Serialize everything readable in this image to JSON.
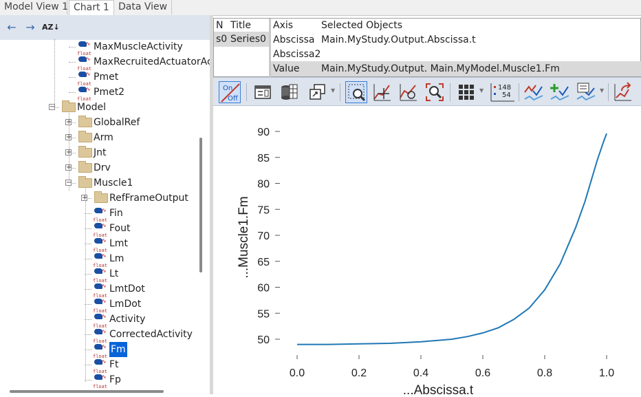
{
  "tabs": [
    "Model View 1",
    "Chart 1",
    "Data View"
  ],
  "tree_toolbar": {
    "back_icon": "arrow-left-icon",
    "forward_icon": "arrow-right-icon",
    "sort_icon": "sort-az-icon",
    "sort_label": "AZ"
  },
  "tree": {
    "items": [
      {
        "label": "MaxMuscleActivity",
        "kind": "float"
      },
      {
        "label": "MaxRecruitedActuatorAct",
        "kind": "float"
      },
      {
        "label": "Pmet",
        "kind": "float"
      },
      {
        "label": "Pmet2",
        "kind": "float"
      },
      {
        "label": "Model",
        "kind": "folder",
        "expanded": true
      },
      {
        "label": "GlobalRef",
        "kind": "folder"
      },
      {
        "label": "Arm",
        "kind": "folder"
      },
      {
        "label": "Jnt",
        "kind": "folder"
      },
      {
        "label": "Drv",
        "kind": "folder"
      },
      {
        "label": "Muscle1",
        "kind": "folder",
        "expanded": true
      },
      {
        "label": "RefFrameOutput",
        "kind": "folder"
      },
      {
        "label": "Fin",
        "kind": "float"
      },
      {
        "label": "Fout",
        "kind": "float"
      },
      {
        "label": "Lmt",
        "kind": "float"
      },
      {
        "label": "Lm",
        "kind": "float"
      },
      {
        "label": "Lt",
        "kind": "float"
      },
      {
        "label": "LmtDot",
        "kind": "float"
      },
      {
        "label": "LmDot",
        "kind": "float"
      },
      {
        "label": "Activity",
        "kind": "float"
      },
      {
        "label": "CorrectedActivity",
        "kind": "float"
      },
      {
        "label": "Fm",
        "kind": "float",
        "selected": true
      },
      {
        "label": "Ft",
        "kind": "float"
      },
      {
        "label": "Fp",
        "kind": "float"
      }
    ],
    "float_icon_text": "float"
  },
  "series_table": {
    "headers": {
      "n": "N",
      "title": "Title",
      "axis": "Axis",
      "selected": "Selected Objects"
    },
    "series": [
      {
        "n": "s0",
        "title": "Series0"
      }
    ],
    "rows": [
      {
        "axis": "Abscissa",
        "selected": "Main.MyStudy.Output.Abscissa.t"
      },
      {
        "axis": "Abscissa2",
        "selected": ""
      },
      {
        "axis": "Value",
        "selected": "Main.MyStudy.Output. Main.MyModel.Muscle1.Fm"
      }
    ]
  },
  "chart_toolbar": {
    "on_off": {
      "on": "On",
      "off": "Off"
    },
    "value_badge": {
      "top": "148",
      "bottom": "54"
    },
    "icons": [
      "on-off-toggle-icon",
      "properties-icon",
      "data-table-icon",
      "copy-windows-icon",
      "zoom-region-icon",
      "pan-icon",
      "zoom-curve-icon",
      "zoom-fit-icon",
      "grid-icon",
      "values-display-icon",
      "curve-style-icon",
      "add-series-icon",
      "series-list-icon",
      "export-icon"
    ]
  },
  "chart_data": {
    "type": "line",
    "xlabel": "...Abscissa.t",
    "ylabel": "...Muscle1.Fm",
    "xlim": [
      0.0,
      1.0
    ],
    "ylim": [
      48,
      92
    ],
    "xticks": [
      0.0,
      0.2,
      0.4,
      0.6,
      0.8,
      1.0
    ],
    "xtick_labels": [
      "0.0",
      "0.2",
      "0.4",
      "0.6",
      "0.8",
      "1.0"
    ],
    "yticks": [
      50,
      55,
      60,
      65,
      70,
      75,
      80,
      85,
      90
    ],
    "ytick_labels": [
      "50",
      "55",
      "60",
      "65",
      "70",
      "75",
      "80",
      "85",
      "90"
    ],
    "grid": false,
    "series": [
      {
        "color": "#1f77b4",
        "x": [
          0.0,
          0.1,
          0.2,
          0.3,
          0.4,
          0.5,
          0.55,
          0.6,
          0.65,
          0.7,
          0.75,
          0.8,
          0.85,
          0.9,
          0.93,
          0.95,
          0.97,
          0.99,
          1.0
        ],
        "y": [
          49.0,
          49.0,
          49.1,
          49.2,
          49.5,
          50.0,
          50.5,
          51.2,
          52.2,
          53.8,
          56.0,
          59.5,
          64.5,
          71.5,
          76.5,
          80.5,
          84.5,
          88.0,
          89.6
        ]
      }
    ]
  }
}
